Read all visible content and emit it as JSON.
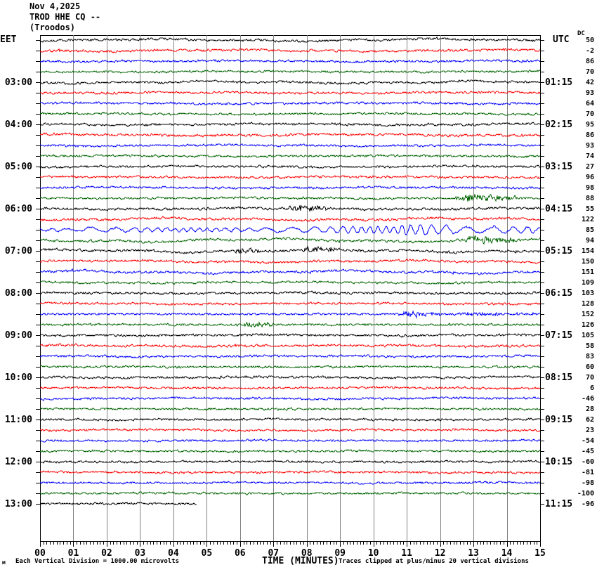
{
  "title": {
    "date": "Nov 4,2025",
    "station": "TROD HHE CQ --",
    "location": "(Troodos)"
  },
  "axes": {
    "left_label": "EET",
    "right_label": "UTC",
    "dc_header": "DC",
    "x_title": "TIME (MINUTES)",
    "x_ticks": [
      "00",
      "01",
      "02",
      "03",
      "04",
      "05",
      "06",
      "07",
      "08",
      "09",
      "10",
      "11",
      "12",
      "13",
      "14",
      "15"
    ]
  },
  "footer": {
    "watermark": "м",
    "scale_note": "Each Vertical Division = 1000.00 microvolts",
    "clip_note": "Traces clipped at plus/minus 20 vertical divisions"
  },
  "chart_data": {
    "type": "line",
    "subtype": "helicorder-seismogram",
    "x_range_minutes": [
      0,
      15
    ],
    "minutes_per_row": 15,
    "rows_capacity": 48,
    "grid": true,
    "grid_color": "#808080",
    "palette": {
      "k": "#000000",
      "r": "#ff0000",
      "b": "#0000ff",
      "g": "#006400"
    },
    "rows": [
      {
        "l": "",
        "r": "",
        "dc": 50,
        "c": "k",
        "a": 1.3,
        "w": 1.2
      },
      {
        "l": "",
        "r": "",
        "dc": -2,
        "c": "r",
        "a": 1.4,
        "w": 0.8
      },
      {
        "l": "",
        "r": "",
        "dc": 86,
        "c": "b",
        "a": 1.2,
        "w": 0.5
      },
      {
        "l": "",
        "r": "",
        "dc": 70,
        "c": "g",
        "a": 1.2,
        "w": 0.5
      },
      {
        "l": "03:00",
        "r": "01:15",
        "dc": 42,
        "c": "k",
        "a": 1.3,
        "w": 1.0
      },
      {
        "l": "",
        "r": "",
        "dc": 93,
        "c": "r",
        "a": 1.3,
        "w": 0.6
      },
      {
        "l": "",
        "r": "",
        "dc": 64,
        "c": "b",
        "a": 1.2,
        "w": 0.5
      },
      {
        "l": "",
        "r": "",
        "dc": 70,
        "c": "g",
        "a": 1.2,
        "w": 0.4
      },
      {
        "l": "04:00",
        "r": "02:15",
        "dc": 95,
        "c": "k",
        "a": 1.3,
        "w": 0.8
      },
      {
        "l": "",
        "r": "",
        "dc": 86,
        "c": "r",
        "a": 1.4,
        "w": 0.7
      },
      {
        "l": "",
        "r": "",
        "dc": 93,
        "c": "b",
        "a": 1.2,
        "w": 0.7
      },
      {
        "l": "",
        "r": "",
        "dc": 74,
        "c": "g",
        "a": 1.2,
        "w": 0.4
      },
      {
        "l": "05:00",
        "r": "03:15",
        "dc": 27,
        "c": "k",
        "a": 1.2,
        "w": 0.5
      },
      {
        "l": "",
        "r": "",
        "dc": 96,
        "c": "r",
        "a": 1.3,
        "w": 0.5
      },
      {
        "l": "",
        "r": "",
        "dc": 98,
        "c": "b",
        "a": 1.2,
        "w": 0.5
      },
      {
        "l": "",
        "r": "",
        "dc": 88,
        "c": "g",
        "a": 1.2,
        "w": 0.4,
        "ev": [
          [
            12.4,
            14.3,
            4.0
          ]
        ]
      },
      {
        "l": "06:00",
        "r": "04:15",
        "dc": 55,
        "c": "k",
        "a": 1.4,
        "w": 0.8,
        "ev": [
          [
            7.4,
            8.6,
            3.5
          ]
        ]
      },
      {
        "l": "",
        "r": "",
        "dc": 122,
        "c": "r",
        "a": 1.4,
        "w": 1.2
      },
      {
        "l": "",
        "r": "",
        "dc": 85,
        "c": "b",
        "a": 1.0,
        "w": 0,
        "surf": {
          "quiet_until": 1.3,
          "amp": 4.5,
          "boosts": [
            [
              10.8,
              12.4,
              7.0
            ],
            [
              13.6,
              14.8,
              6.0
            ]
          ]
        }
      },
      {
        "l": "",
        "r": "",
        "dc": 94,
        "c": "g",
        "a": 1.4,
        "w": 1.6,
        "ev": [
          [
            12.7,
            14.2,
            4.5
          ]
        ]
      },
      {
        "l": "07:00",
        "r": "05:15",
        "dc": 154,
        "c": "k",
        "a": 1.4,
        "w": 1.4,
        "ev": [
          [
            5.8,
            6.6,
            3.0
          ],
          [
            7.8,
            9.0,
            3.0
          ]
        ]
      },
      {
        "l": "",
        "r": "",
        "dc": 150,
        "c": "r",
        "a": 1.3,
        "w": 1.0
      },
      {
        "l": "",
        "r": "",
        "dc": 151,
        "c": "b",
        "a": 1.3,
        "w": 1.4
      },
      {
        "l": "",
        "r": "",
        "dc": 109,
        "c": "g",
        "a": 1.2,
        "w": 0.7
      },
      {
        "l": "08:00",
        "r": "06:15",
        "dc": 103,
        "c": "k",
        "a": 1.3,
        "w": 0.5
      },
      {
        "l": "",
        "r": "",
        "dc": 128,
        "c": "r",
        "a": 1.2,
        "w": 0.5
      },
      {
        "l": "",
        "r": "",
        "dc": 152,
        "c": "b",
        "a": 1.1,
        "w": 0,
        "ev": [
          [
            10.7,
            12.0,
            3.2
          ],
          [
            12.0,
            15.0,
            1.3
          ]
        ]
      },
      {
        "l": "",
        "r": "",
        "dc": 126,
        "c": "g",
        "a": 1.2,
        "w": 0,
        "ev": [
          [
            6.0,
            7.0,
            3.0
          ]
        ]
      },
      {
        "l": "09:00",
        "r": "07:15",
        "dc": 105,
        "c": "k",
        "a": 1.3,
        "w": 0.5
      },
      {
        "l": "",
        "r": "",
        "dc": 58,
        "c": "r",
        "a": 1.3,
        "w": 0.6
      },
      {
        "l": "",
        "r": "",
        "dc": 83,
        "c": "b",
        "a": 1.2,
        "w": 0.5
      },
      {
        "l": "",
        "r": "",
        "dc": 60,
        "c": "g",
        "a": 1.2,
        "w": 0.3
      },
      {
        "l": "10:00",
        "r": "08:15",
        "dc": 70,
        "c": "k",
        "a": 1.3,
        "w": 0.5
      },
      {
        "l": "",
        "r": "",
        "dc": 6,
        "c": "r",
        "a": 1.2,
        "w": 0.5
      },
      {
        "l": "",
        "r": "",
        "dc": -46,
        "c": "b",
        "a": 1.2,
        "w": 0.6
      },
      {
        "l": "",
        "r": "",
        "dc": 28,
        "c": "g",
        "a": 1.2,
        "w": 0.3
      },
      {
        "l": "11:00",
        "r": "09:15",
        "dc": 62,
        "c": "k",
        "a": 1.2,
        "w": 0.4
      },
      {
        "l": "",
        "r": "",
        "dc": 23,
        "c": "r",
        "a": 1.2,
        "w": 0.5
      },
      {
        "l": "",
        "r": "",
        "dc": -54,
        "c": "b",
        "a": 1.1,
        "w": 0.3
      },
      {
        "l": "",
        "r": "",
        "dc": -45,
        "c": "g",
        "a": 1.1,
        "w": 0.3
      },
      {
        "l": "12:00",
        "r": "10:15",
        "dc": -60,
        "c": "k",
        "a": 1.2,
        "w": 0.4
      },
      {
        "l": "",
        "r": "",
        "dc": -81,
        "c": "r",
        "a": 1.2,
        "w": 0.5
      },
      {
        "l": "",
        "r": "",
        "dc": -98,
        "c": "b",
        "a": 1.1,
        "w": 0.3
      },
      {
        "l": "",
        "r": "",
        "dc": -100,
        "c": "g",
        "a": 1.1,
        "w": 0.3
      },
      {
        "l": "13:00",
        "r": "11:15",
        "dc": -96,
        "c": "k",
        "a": 1.2,
        "w": 0.4,
        "end": 4.7
      }
    ]
  }
}
